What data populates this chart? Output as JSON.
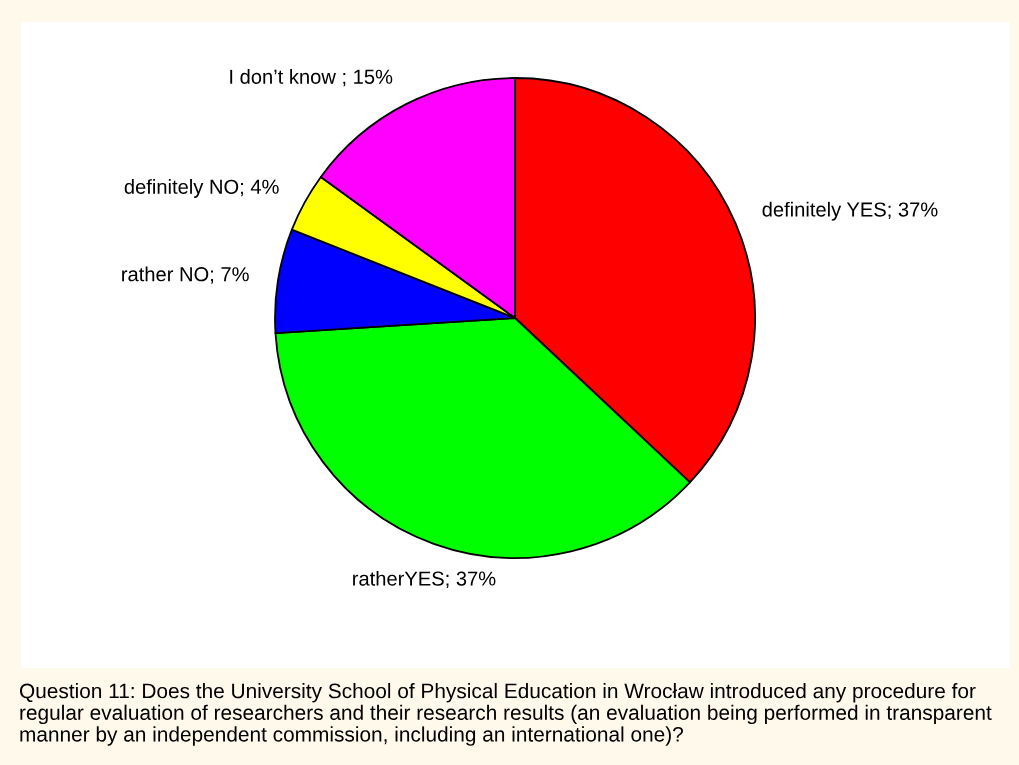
{
  "chart_data": {
    "type": "pie",
    "categories": [
      "definitely YES",
      "ratherYES",
      "rather NO",
      "definitely NO",
      "I don’t know "
    ],
    "values": [
      37,
      37,
      7,
      4,
      15
    ],
    "value_labels": [
      "37%",
      "37%",
      "7%",
      "4%",
      "15%"
    ],
    "colors": [
      "#ff0000",
      "#00ff00",
      "#0000ff",
      "#ffff00",
      "#ff00ff"
    ],
    "annotations": [
      "Question 11: Does the University School of Physical Education in Wrocław introduced any procedure for regular evaluation of researchers and their research results (an evaluation being performed in transparent manner by an independent commission, including an international one)?"
    ]
  }
}
